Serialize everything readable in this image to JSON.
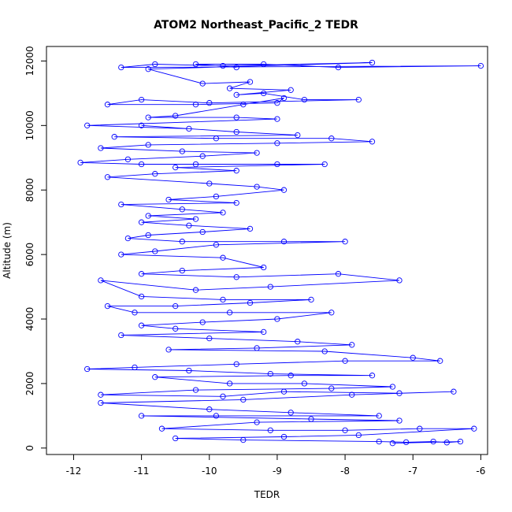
{
  "chart_data": {
    "type": "line",
    "title": "ATOM2 Northeast_Pacific_2 TEDR",
    "xlabel": "TEDR",
    "ylabel": "Altitude (m)",
    "xlim": [
      -12.4,
      -5.9
    ],
    "ylim": [
      -200,
      12450
    ],
    "xticks": [
      -12,
      -11,
      -10,
      -9,
      -8,
      -7,
      -6
    ],
    "yticks": [
      0,
      2000,
      4000,
      6000,
      8000,
      10000,
      12000
    ],
    "grid": false,
    "legend": "none",
    "color": "#0000ff",
    "markers": "open-circle",
    "series": [
      {
        "points": [
          [
            -9.6,
            11800
          ],
          [
            -10.2,
            11900
          ],
          [
            -9.2,
            11900
          ],
          [
            -8.1,
            11800
          ],
          [
            -6.0,
            11850
          ],
          [
            -11.3,
            11800
          ],
          [
            -10.8,
            11900
          ],
          [
            -9.8,
            11850
          ],
          [
            -7.6,
            11950
          ],
          [
            -10.9,
            11750
          ],
          [
            -10.1,
            11300
          ],
          [
            -9.4,
            11350
          ],
          [
            -9.7,
            11150
          ],
          [
            -8.8,
            11100
          ],
          [
            -9.6,
            10950
          ],
          [
            -9.2,
            11000
          ],
          [
            -8.6,
            10800
          ],
          [
            -7.8,
            10800
          ],
          [
            -10.0,
            10700
          ],
          [
            -11.0,
            10800
          ],
          [
            -11.5,
            10650
          ],
          [
            -10.2,
            10650
          ],
          [
            -9.0,
            10700
          ],
          [
            -8.9,
            10850
          ],
          [
            -9.5,
            10650
          ],
          [
            -10.5,
            10300
          ],
          [
            -10.9,
            10250
          ],
          [
            -9.6,
            10250
          ],
          [
            -9.0,
            10200
          ],
          [
            -11.8,
            10000
          ],
          [
            -10.3,
            9900
          ],
          [
            -11.0,
            10000
          ],
          [
            -9.6,
            9800
          ],
          [
            -8.7,
            9700
          ],
          [
            -11.4,
            9650
          ],
          [
            -9.9,
            9600
          ],
          [
            -8.2,
            9600
          ],
          [
            -7.6,
            9500
          ],
          [
            -9.0,
            9450
          ],
          [
            -10.9,
            9400
          ],
          [
            -11.6,
            9300
          ],
          [
            -10.4,
            9200
          ],
          [
            -9.3,
            9150
          ],
          [
            -10.1,
            9050
          ],
          [
            -11.2,
            8950
          ],
          [
            -11.9,
            8850
          ],
          [
            -11.0,
            8800
          ],
          [
            -10.2,
            8800
          ],
          [
            -9.0,
            8800
          ],
          [
            -8.3,
            8800
          ],
          [
            -10.5,
            8700
          ],
          [
            -9.6,
            8600
          ],
          [
            -10.8,
            8500
          ],
          [
            -11.5,
            8400
          ],
          [
            -10.0,
            8200
          ],
          [
            -9.3,
            8100
          ],
          [
            -8.9,
            8000
          ],
          [
            -9.9,
            7800
          ],
          [
            -10.6,
            7700
          ],
          [
            -9.6,
            7600
          ],
          [
            -11.3,
            7550
          ],
          [
            -10.4,
            7400
          ],
          [
            -9.8,
            7300
          ],
          [
            -10.9,
            7200
          ],
          [
            -10.2,
            7100
          ],
          [
            -11.0,
            7000
          ],
          [
            -10.3,
            6900
          ],
          [
            -9.4,
            6800
          ],
          [
            -10.1,
            6700
          ],
          [
            -10.9,
            6600
          ],
          [
            -11.2,
            6500
          ],
          [
            -10.4,
            6400
          ],
          [
            -8.9,
            6400
          ],
          [
            -8.0,
            6400
          ],
          [
            -9.9,
            6300
          ],
          [
            -10.8,
            6100
          ],
          [
            -11.3,
            6000
          ],
          [
            -9.8,
            5900
          ],
          [
            -9.2,
            5600
          ],
          [
            -10.4,
            5500
          ],
          [
            -11.0,
            5400
          ],
          [
            -9.6,
            5300
          ],
          [
            -8.1,
            5400
          ],
          [
            -7.2,
            5200
          ],
          [
            -9.1,
            5000
          ],
          [
            -10.2,
            4900
          ],
          [
            -11.6,
            5200
          ],
          [
            -11.0,
            4700
          ],
          [
            -9.8,
            4600
          ],
          [
            -8.5,
            4600
          ],
          [
            -9.4,
            4500
          ],
          [
            -10.5,
            4400
          ],
          [
            -11.5,
            4400
          ],
          [
            -11.1,
            4200
          ],
          [
            -9.7,
            4200
          ],
          [
            -8.2,
            4200
          ],
          [
            -9.0,
            4000
          ],
          [
            -10.1,
            3900
          ],
          [
            -11.0,
            3800
          ],
          [
            -10.5,
            3700
          ],
          [
            -9.2,
            3600
          ],
          [
            -11.3,
            3500
          ],
          [
            -10.0,
            3400
          ],
          [
            -8.7,
            3300
          ],
          [
            -7.9,
            3200
          ],
          [
            -9.3,
            3100
          ],
          [
            -10.6,
            3050
          ],
          [
            -8.3,
            3000
          ],
          [
            -7.0,
            2800
          ],
          [
            -6.6,
            2700
          ],
          [
            -8.0,
            2700
          ],
          [
            -9.6,
            2600
          ],
          [
            -11.1,
            2500
          ],
          [
            -11.8,
            2450
          ],
          [
            -10.3,
            2400
          ],
          [
            -9.1,
            2300
          ],
          [
            -7.6,
            2250
          ],
          [
            -8.8,
            2250
          ],
          [
            -10.8,
            2200
          ],
          [
            -9.7,
            2000
          ],
          [
            -8.6,
            2000
          ],
          [
            -7.3,
            1900
          ],
          [
            -8.2,
            1850
          ],
          [
            -10.2,
            1800
          ],
          [
            -11.6,
            1650
          ],
          [
            -9.8,
            1600
          ],
          [
            -8.9,
            1750
          ],
          [
            -7.2,
            1700
          ],
          [
            -6.4,
            1750
          ],
          [
            -7.9,
            1650
          ],
          [
            -9.5,
            1500
          ],
          [
            -11.6,
            1400
          ],
          [
            -10.0,
            1200
          ],
          [
            -8.8,
            1100
          ],
          [
            -7.5,
            1000
          ],
          [
            -9.9,
            1000
          ],
          [
            -11.0,
            1000
          ],
          [
            -8.5,
            900
          ],
          [
            -7.2,
            850
          ],
          [
            -9.3,
            800
          ],
          [
            -10.7,
            600
          ],
          [
            -9.1,
            550
          ],
          [
            -8.0,
            550
          ],
          [
            -6.9,
            600
          ],
          [
            -6.1,
            600
          ],
          [
            -7.8,
            400
          ],
          [
            -8.9,
            350
          ],
          [
            -10.5,
            300
          ],
          [
            -9.5,
            250
          ],
          [
            -7.5,
            200
          ],
          [
            -7.1,
            180
          ],
          [
            -6.7,
            200
          ],
          [
            -6.5,
            170
          ],
          [
            -6.3,
            200
          ],
          [
            -7.3,
            150
          ]
        ]
      }
    ]
  }
}
